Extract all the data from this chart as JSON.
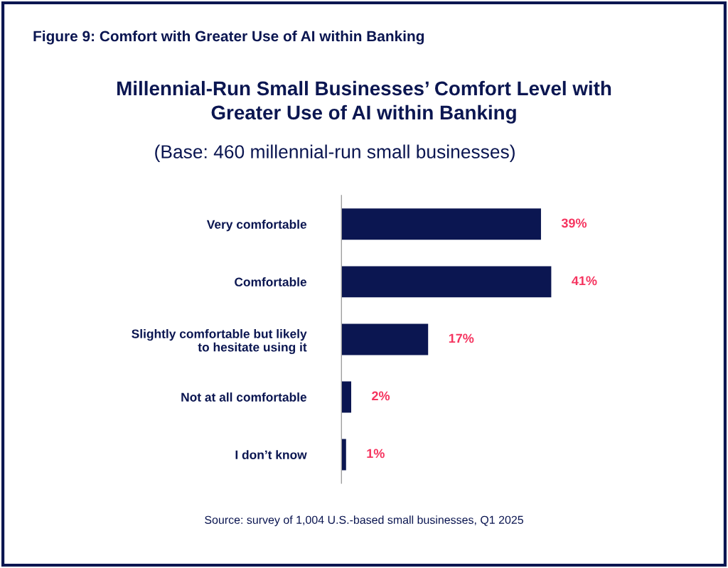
{
  "chart_data": {
    "type": "bar",
    "orientation": "horizontal",
    "title": "Figure 9: Comfort with Greater Use of AI within Banking",
    "subtitle": "Millennial-Run Small Businesses’ Comfort Level with\nGreater Use of AI within Banking",
    "annotations": [
      "(Base: 460 millennial-run small businesses)",
      "Source: survey of 1,004 U.S.-based small businesses, Q1 2025"
    ],
    "categories": [
      "Very comfortable",
      "Comfortable",
      "Slightly comfortable but likely\nto hesitate using it",
      "Not at all comfortable",
      "I don’t know"
    ],
    "values": [
      39,
      41,
      17,
      2,
      1
    ],
    "value_labels": [
      "39%",
      "41%",
      "17%",
      "2%",
      "1%"
    ],
    "color": "#0b1651",
    "grid": false,
    "legend": false
  }
}
